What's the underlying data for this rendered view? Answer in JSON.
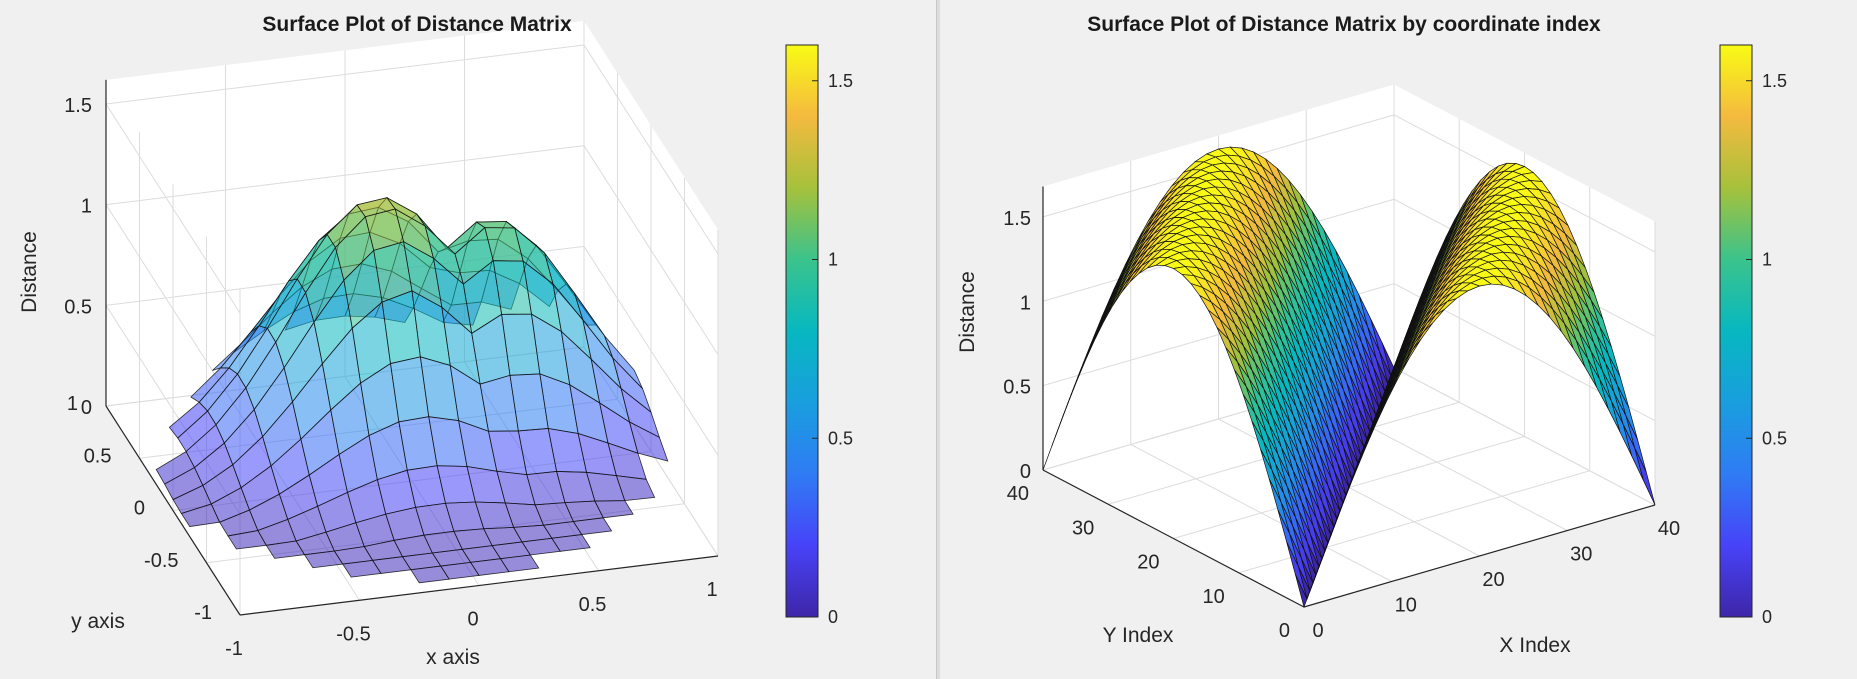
{
  "chart_data": [
    {
      "type": "surface3d",
      "title": "Surface Plot of Distance Matrix",
      "xlabel": "x axis",
      "ylabel": "y axis",
      "zlabel": "Distance",
      "xlim": [
        -1,
        1
      ],
      "ylim": [
        -1,
        1
      ],
      "zlim": [
        0,
        1.5
      ],
      "x_ticks": [
        "-1",
        "-0.5",
        "0",
        "0.5",
        "1"
      ],
      "y_ticks": [
        "-1",
        "-0.5",
        "0",
        "0.5",
        "1"
      ],
      "z_ticks": [
        "0",
        "0.5",
        "1",
        "1.5"
      ],
      "colormap": "parula",
      "face_alpha": 0.55,
      "grid": true,
      "colorbar": {
        "range": [
          0,
          1.6
        ],
        "ticks": [
          "0",
          "0.5",
          "1",
          "1.5"
        ]
      }
    },
    {
      "type": "surface3d",
      "title": "Surface Plot of Distance Matrix by coordinate index",
      "xlabel": "X Index",
      "ylabel": "Y Index",
      "zlabel": "Distance",
      "xlim": [
        0,
        40
      ],
      "ylim": [
        0,
        40
      ],
      "zlim": [
        0,
        1.6
      ],
      "x_ticks": [
        "0",
        "10",
        "20",
        "30",
        "40"
      ],
      "y_ticks": [
        "0",
        "10",
        "20",
        "30",
        "40"
      ],
      "z_ticks": [
        "0",
        "0.5",
        "1",
        "1.5"
      ],
      "colormap": "parula",
      "face_alpha": 1,
      "grid": true,
      "colorbar": {
        "range": [
          0,
          1.6
        ],
        "ticks": [
          "0",
          "0.5",
          "1",
          "1.5"
        ]
      }
    }
  ]
}
